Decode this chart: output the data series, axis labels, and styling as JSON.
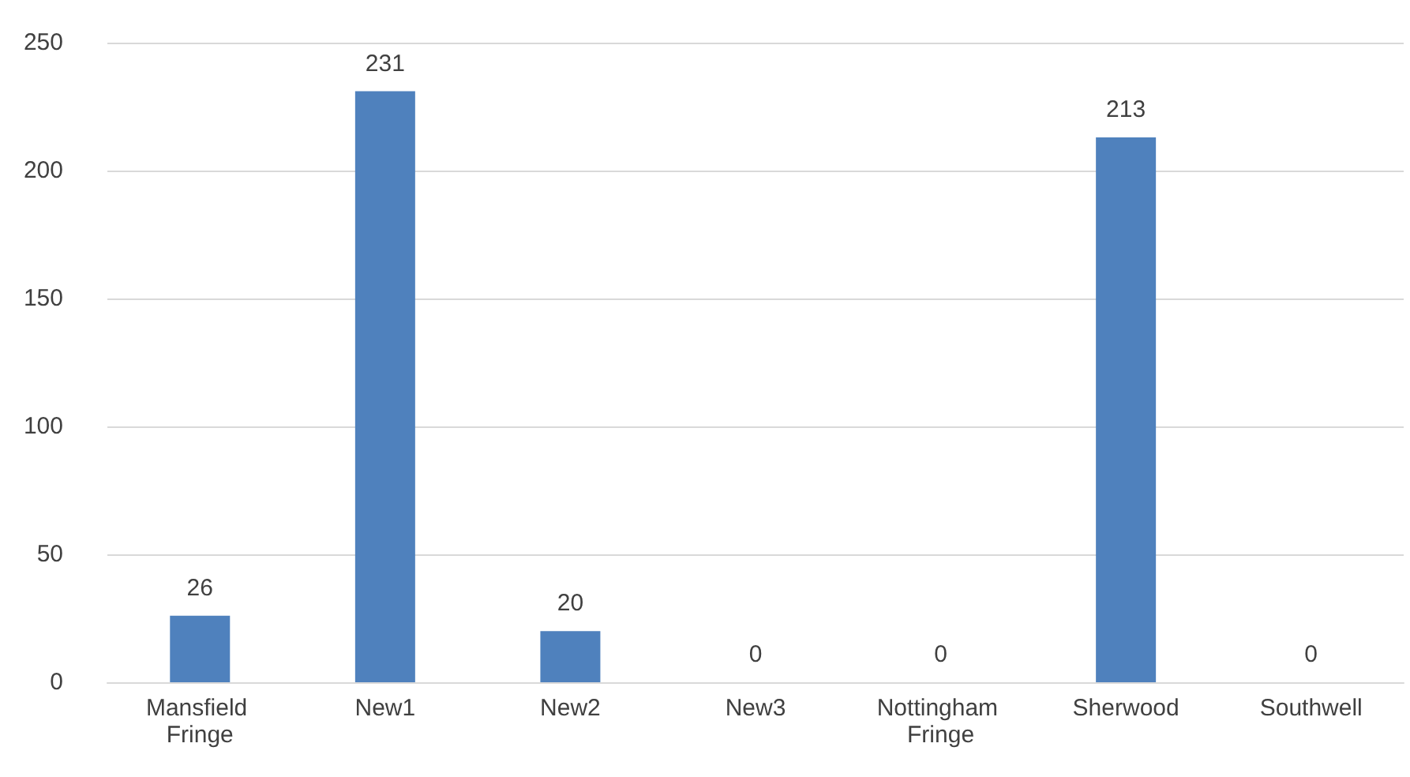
{
  "chart_data": {
    "type": "bar",
    "categories": [
      "Mansfield Fringe",
      "New1",
      "New2",
      "New3",
      "Nottingham Fringe",
      "Sherwood",
      "Southwell"
    ],
    "values": [
      26,
      231,
      20,
      0,
      0,
      213,
      0
    ],
    "color": "#4f81bd",
    "ylim": [
      0,
      250
    ],
    "yticks": [
      0,
      50,
      100,
      150,
      200,
      250
    ],
    "grid": "y",
    "data_labels": true
  }
}
